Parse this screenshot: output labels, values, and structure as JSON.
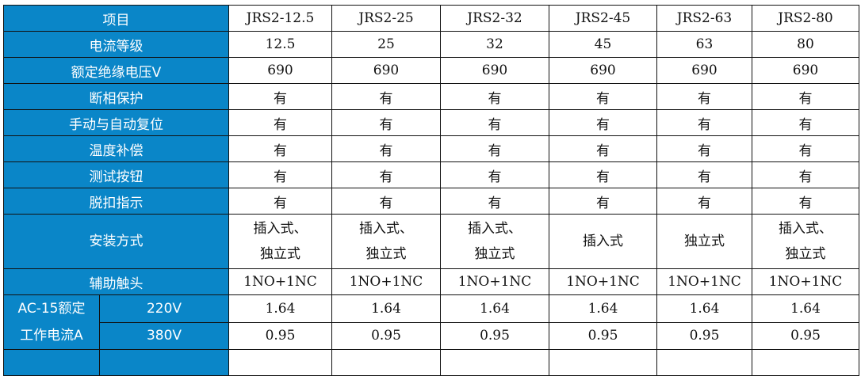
{
  "header": {
    "label": "项目",
    "models": [
      "JRS2-12.5",
      "JRS2-25",
      "JRS2-32",
      "JRS2-45",
      "JRS2-63",
      "JRS2-80"
    ]
  },
  "rows": [
    {
      "label": "电流等级",
      "values": [
        "12.5",
        "25",
        "32",
        "45",
        "63",
        "80"
      ]
    },
    {
      "label": "额定绝缘电压V",
      "values": [
        "690",
        "690",
        "690",
        "690",
        "690",
        "690"
      ]
    },
    {
      "label": "断相保护",
      "values": [
        "有",
        "有",
        "有",
        "有",
        "有",
        "有"
      ]
    },
    {
      "label": "手动与自动复位",
      "values": [
        "有",
        "有",
        "有",
        "有",
        "有",
        "有"
      ]
    },
    {
      "label": "温度补偿",
      "values": [
        "有",
        "有",
        "有",
        "有",
        "有",
        "有"
      ]
    },
    {
      "label": "测试按钮",
      "values": [
        "有",
        "有",
        "有",
        "有",
        "有",
        "有"
      ]
    },
    {
      "label": "脱扣指示",
      "values": [
        "有",
        "有",
        "有",
        "有",
        "有",
        "有"
      ]
    }
  ],
  "install": {
    "label": "安装方式",
    "values": [
      [
        "插入式、",
        "独立式"
      ],
      [
        "插入式、",
        "独立式"
      ],
      [
        "插入式、",
        "独立式"
      ],
      [
        "插入式",
        ""
      ],
      [
        "独立式",
        ""
      ],
      [
        "插入式、",
        "独立式"
      ]
    ]
  },
  "aux": {
    "label": "辅助触头",
    "values": [
      "1NO+1NC",
      "1NO+1NC",
      "1NO+1NC",
      "1NO+1NC",
      "1NO+1NC",
      "1NO+1NC"
    ]
  },
  "ac15": {
    "label_line1": "AC-15额定",
    "label_line2": "工作电流A",
    "rows": [
      {
        "voltage": "220V",
        "values": [
          "1.64",
          "1.64",
          "1.64",
          "1.64",
          "1.64",
          "1.64"
        ]
      },
      {
        "voltage": "380V",
        "values": [
          "0.95",
          "0.95",
          "0.95",
          "0.95",
          "0.95",
          "0.95"
        ]
      }
    ]
  },
  "colors": {
    "header_bg": "#0a86c8",
    "header_text": "#ffffff"
  }
}
